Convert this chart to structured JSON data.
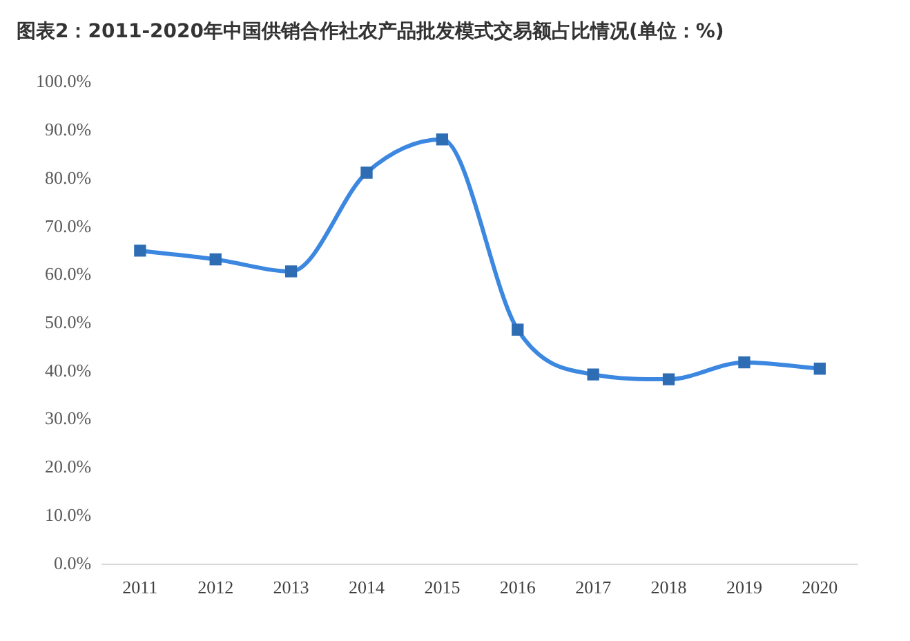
{
  "chart_data": {
    "type": "line",
    "title": "图表2：2011-2020年中国供销合作社农产品批发模式交易额占比情况(单位：%)",
    "categories": [
      "2011",
      "2012",
      "2013",
      "2014",
      "2015",
      "2016",
      "2017",
      "2018",
      "2019",
      "2020"
    ],
    "series": [
      {
        "color": "#3c87e0",
        "values": [
          65.1,
          63.3,
          60.8,
          81.3,
          88.2,
          48.7,
          39.4,
          38.4,
          41.9,
          40.6
        ]
      }
    ],
    "ylim": [
      0,
      100
    ],
    "yticks": [
      {
        "value": 0,
        "label": "0.0%"
      },
      {
        "value": 10,
        "label": "10.0%"
      },
      {
        "value": 20,
        "label": "20.0%"
      },
      {
        "value": 30,
        "label": "30.0%"
      },
      {
        "value": 40,
        "label": "40.0%"
      },
      {
        "value": 50,
        "label": "50.0%"
      },
      {
        "value": 60,
        "label": "60.0%"
      },
      {
        "value": 70,
        "label": "70.0%"
      },
      {
        "value": 80,
        "label": "80.0%"
      },
      {
        "value": 90,
        "label": "90.0%"
      },
      {
        "value": 100,
        "label": "100.0%"
      }
    ],
    "grid": false,
    "legend": false,
    "marker": "square",
    "line_style": "solid"
  }
}
